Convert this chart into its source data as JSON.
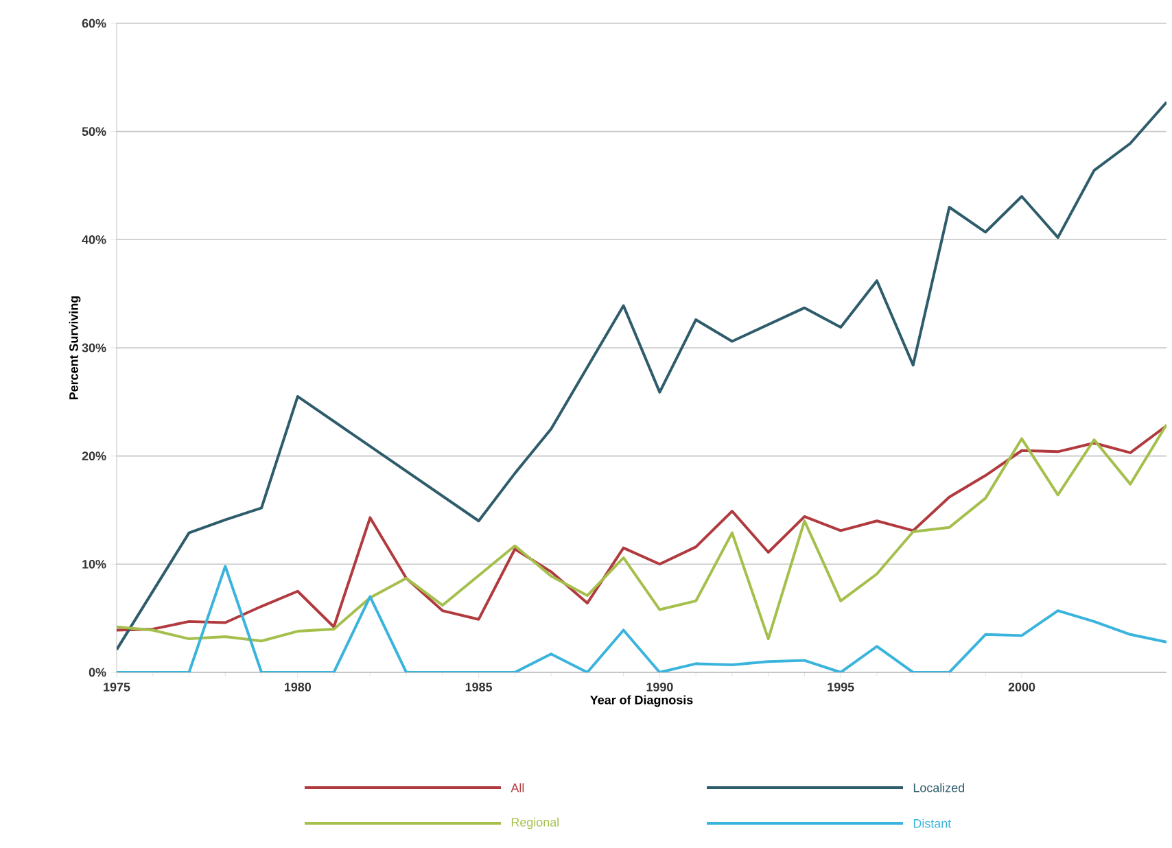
{
  "chart_data": {
    "type": "line",
    "xlabel": "Year of Diagnosis",
    "ylabel": "Percent Surviving",
    "x": [
      1975,
      1976,
      1977,
      1978,
      1979,
      1980,
      1981,
      1982,
      1983,
      1984,
      1985,
      1986,
      1987,
      1988,
      1989,
      1990,
      1991,
      1992,
      1993,
      1994,
      1995,
      1996,
      1997,
      1998,
      1999,
      2000,
      2001,
      2002,
      2003,
      2004
    ],
    "xlim": [
      1975,
      2004
    ],
    "xticks": [
      1975,
      1980,
      1985,
      1990,
      1995,
      2000
    ],
    "ylim": [
      0,
      60
    ],
    "yticks": [
      {
        "value": 0,
        "label": "0%"
      },
      {
        "value": 10,
        "label": "10%"
      },
      {
        "value": 20,
        "label": "20%"
      },
      {
        "value": 30,
        "label": "30%"
      },
      {
        "value": 40,
        "label": "40%"
      },
      {
        "value": 50,
        "label": "50%"
      },
      {
        "value": 60,
        "label": "60%"
      }
    ],
    "grid": "y",
    "legend": "bottom",
    "line_style": "solid",
    "marker": "none",
    "series": [
      {
        "name": "All",
        "color": "#b03a3e",
        "values": [
          3.9,
          4.0,
          4.7,
          4.6,
          6.1,
          7.5,
          4.2,
          14.3,
          8.7,
          5.7,
          4.9,
          11.4,
          9.3,
          6.4,
          11.5,
          10.0,
          11.6,
          14.9,
          11.1,
          14.4,
          13.1,
          14.0,
          13.1,
          16.2,
          18.2,
          20.5,
          20.4,
          21.2,
          20.3,
          22.8
        ]
      },
      {
        "name": "Localized",
        "color": "#2e5c6b",
        "values": [
          2.1,
          null,
          12.9,
          14.1,
          15.2,
          25.5,
          null,
          null,
          null,
          null,
          14.0,
          18.4,
          22.5,
          null,
          33.9,
          25.9,
          32.6,
          30.6,
          null,
          33.7,
          31.9,
          36.2,
          28.4,
          43.0,
          40.7,
          44.0,
          40.2,
          46.4,
          48.9,
          52.7
        ]
      },
      {
        "name": "Regional",
        "color": "#a5bf4c",
        "values": [
          4.2,
          3.9,
          3.1,
          3.3,
          2.9,
          3.8,
          4.0,
          6.9,
          8.7,
          6.2,
          null,
          11.7,
          8.9,
          7.1,
          10.6,
          5.8,
          6.6,
          12.9,
          3.1,
          14.0,
          6.6,
          9.1,
          13.0,
          13.4,
          16.1,
          21.6,
          16.4,
          21.5,
          17.4,
          22.9
        ]
      },
      {
        "name": "Distant",
        "color": "#3ab4dc",
        "values": [
          0,
          0,
          0,
          9.8,
          0,
          0,
          0,
          7.0,
          0,
          0,
          0,
          0,
          1.7,
          0,
          3.9,
          0,
          0.8,
          0.7,
          1.0,
          1.1,
          0,
          2.4,
          0,
          0,
          3.5,
          3.4,
          5.7,
          4.7,
          3.5,
          2.8
        ]
      }
    ]
  }
}
